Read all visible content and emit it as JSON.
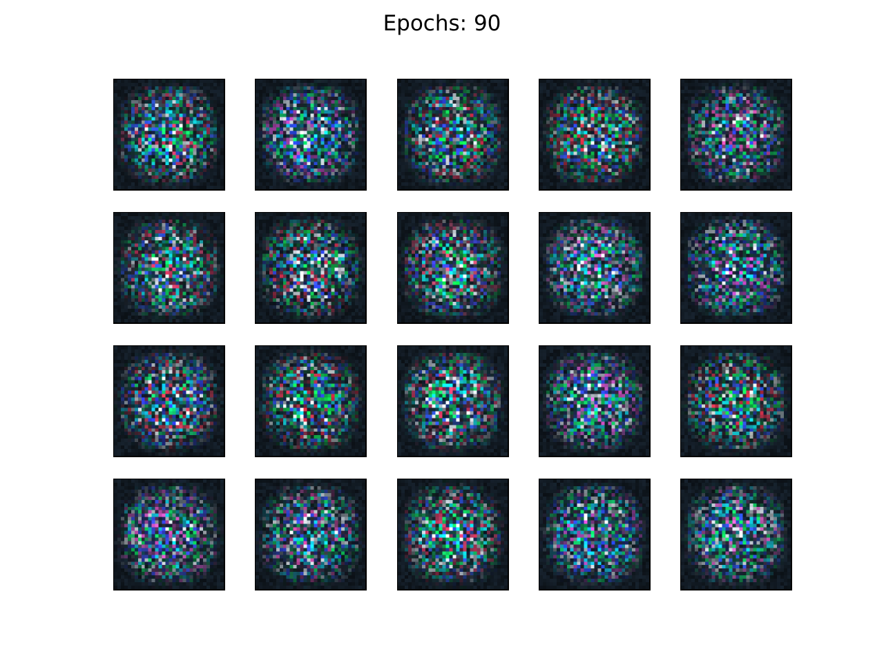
{
  "figure": {
    "title": "Epochs: 90"
  },
  "grid": {
    "rows": 4,
    "cols": 5,
    "tiles": [
      {
        "id": 1,
        "seed": 11,
        "accent": "green-cyan"
      },
      {
        "id": 2,
        "seed": 23,
        "accent": "cyan-blue"
      },
      {
        "id": 3,
        "seed": 37,
        "accent": "mixed"
      },
      {
        "id": 4,
        "seed": 41,
        "accent": "green-red"
      },
      {
        "id": 5,
        "seed": 53,
        "accent": "blue-green"
      },
      {
        "id": 6,
        "seed": 67,
        "accent": "green-cyan"
      },
      {
        "id": 7,
        "seed": 71,
        "accent": "mixed"
      },
      {
        "id": 8,
        "seed": 83,
        "accent": "cyan-green"
      },
      {
        "id": 9,
        "seed": 97,
        "accent": "green-pink"
      },
      {
        "id": 10,
        "seed": 101,
        "accent": "cyan-blue"
      },
      {
        "id": 11,
        "seed": 113,
        "accent": "blue-red"
      },
      {
        "id": 12,
        "seed": 127,
        "accent": "green-red"
      },
      {
        "id": 13,
        "seed": 131,
        "accent": "green-cyan"
      },
      {
        "id": 14,
        "seed": 149,
        "accent": "blue-pink"
      },
      {
        "id": 15,
        "seed": 151,
        "accent": "green-red"
      },
      {
        "id": 16,
        "seed": 163,
        "accent": "cyan-pink"
      },
      {
        "id": 17,
        "seed": 173,
        "accent": "blue-green"
      },
      {
        "id": 18,
        "seed": 181,
        "accent": "green-cyan"
      },
      {
        "id": 19,
        "seed": 191,
        "accent": "cyan-blue"
      },
      {
        "id": 20,
        "seed": 199,
        "accent": "green-pink"
      }
    ]
  }
}
